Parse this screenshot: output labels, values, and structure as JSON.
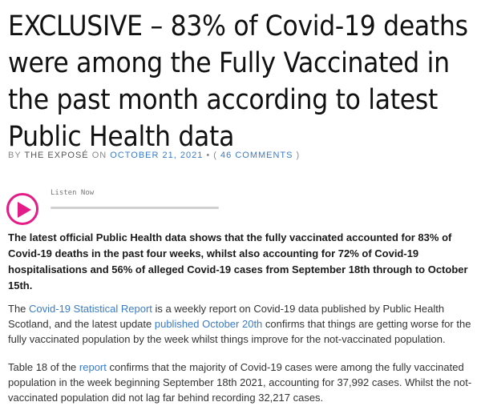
{
  "article": {
    "title": "EXCLUSIVE – 83% of Covid-19 deaths were among the Fully Vaccinated in the past month according to latest Public Health data",
    "byline": {
      "by": "BY ",
      "author": "THE EXPOSÉ",
      "on": " ON ",
      "date": "OCTOBER 21, 2021",
      "sep": " • ( ",
      "comments": "46 COMMENTS",
      "close": " )"
    },
    "player": {
      "label": "Listen Now",
      "progress": 0.0
    },
    "lead": "The latest official Public Health data shows that the fully vaccinated accounted for 83% of Covid-19 deaths in the past four weeks, whilst also accounting for 72% of Covid-19 hospitalisations and 56% of alleged Covid-19 cases from September 18th through to October 15th.",
    "p1": {
      "t1": "The ",
      "link1": "Covid-19 Statistical Report",
      "t2": " is a weekly report on Covid-19 data published by Public Health Scotland, and the latest update ",
      "link2": "published October 20th",
      "t3": " confirms that things are getting worse for the fully vaccinated population by the week whilst things improve for the not-vaccinated population."
    },
    "p2": {
      "t1": "Table 18 of the ",
      "link1": "report",
      "t2": " confirms that the majority of Covid-19 cases were among the fully vaccinated population in the week beginning September 18th 2021, accounting for 37,992 cases. Whilst the not-vaccinated population did not lag far behind recording 32,217 cases."
    }
  },
  "colors": {
    "accent": "#e31c88",
    "link": "#3a7bc8"
  }
}
